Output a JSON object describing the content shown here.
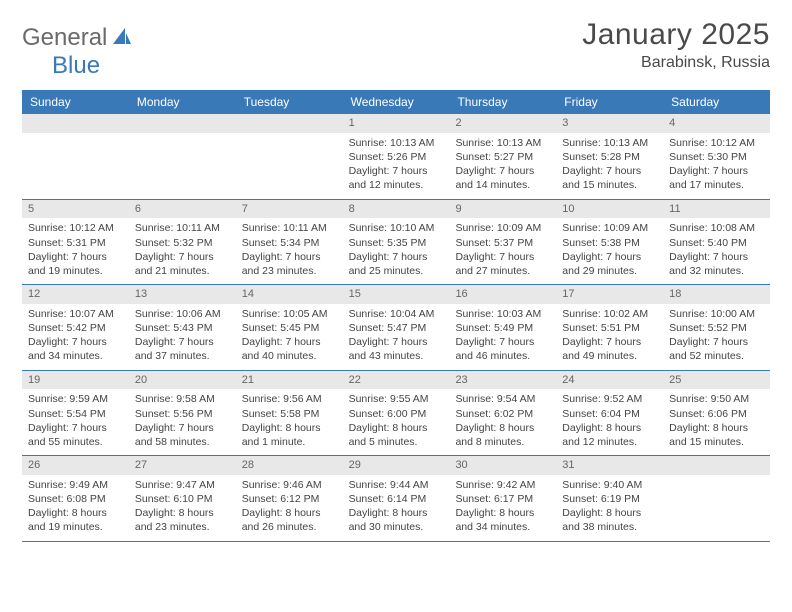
{
  "brand": {
    "part1": "General",
    "part2": "Blue",
    "sail_color": "#3a79b7",
    "text_gray": "#6a6a6a"
  },
  "title": "January 2025",
  "location": "Barabinsk, Russia",
  "colors": {
    "header_bg": "#3a79b7",
    "header_text": "#ffffff",
    "daynum_bg": "#e8e8e8",
    "daynum_text": "#666666",
    "body_text": "#444444",
    "rule": "#3a79b7"
  },
  "day_headers": [
    "Sunday",
    "Monday",
    "Tuesday",
    "Wednesday",
    "Thursday",
    "Friday",
    "Saturday"
  ],
  "weeks": [
    [
      {
        "n": "",
        "lines": []
      },
      {
        "n": "",
        "lines": []
      },
      {
        "n": "",
        "lines": []
      },
      {
        "n": "1",
        "lines": [
          "Sunrise: 10:13 AM",
          "Sunset: 5:26 PM",
          "Daylight: 7 hours",
          "and 12 minutes."
        ]
      },
      {
        "n": "2",
        "lines": [
          "Sunrise: 10:13 AM",
          "Sunset: 5:27 PM",
          "Daylight: 7 hours",
          "and 14 minutes."
        ]
      },
      {
        "n": "3",
        "lines": [
          "Sunrise: 10:13 AM",
          "Sunset: 5:28 PM",
          "Daylight: 7 hours",
          "and 15 minutes."
        ]
      },
      {
        "n": "4",
        "lines": [
          "Sunrise: 10:12 AM",
          "Sunset: 5:30 PM",
          "Daylight: 7 hours",
          "and 17 minutes."
        ]
      }
    ],
    [
      {
        "n": "5",
        "lines": [
          "Sunrise: 10:12 AM",
          "Sunset: 5:31 PM",
          "Daylight: 7 hours",
          "and 19 minutes."
        ]
      },
      {
        "n": "6",
        "lines": [
          "Sunrise: 10:11 AM",
          "Sunset: 5:32 PM",
          "Daylight: 7 hours",
          "and 21 minutes."
        ]
      },
      {
        "n": "7",
        "lines": [
          "Sunrise: 10:11 AM",
          "Sunset: 5:34 PM",
          "Daylight: 7 hours",
          "and 23 minutes."
        ]
      },
      {
        "n": "8",
        "lines": [
          "Sunrise: 10:10 AM",
          "Sunset: 5:35 PM",
          "Daylight: 7 hours",
          "and 25 minutes."
        ]
      },
      {
        "n": "9",
        "lines": [
          "Sunrise: 10:09 AM",
          "Sunset: 5:37 PM",
          "Daylight: 7 hours",
          "and 27 minutes."
        ]
      },
      {
        "n": "10",
        "lines": [
          "Sunrise: 10:09 AM",
          "Sunset: 5:38 PM",
          "Daylight: 7 hours",
          "and 29 minutes."
        ]
      },
      {
        "n": "11",
        "lines": [
          "Sunrise: 10:08 AM",
          "Sunset: 5:40 PM",
          "Daylight: 7 hours",
          "and 32 minutes."
        ]
      }
    ],
    [
      {
        "n": "12",
        "lines": [
          "Sunrise: 10:07 AM",
          "Sunset: 5:42 PM",
          "Daylight: 7 hours",
          "and 34 minutes."
        ]
      },
      {
        "n": "13",
        "lines": [
          "Sunrise: 10:06 AM",
          "Sunset: 5:43 PM",
          "Daylight: 7 hours",
          "and 37 minutes."
        ]
      },
      {
        "n": "14",
        "lines": [
          "Sunrise: 10:05 AM",
          "Sunset: 5:45 PM",
          "Daylight: 7 hours",
          "and 40 minutes."
        ]
      },
      {
        "n": "15",
        "lines": [
          "Sunrise: 10:04 AM",
          "Sunset: 5:47 PM",
          "Daylight: 7 hours",
          "and 43 minutes."
        ]
      },
      {
        "n": "16",
        "lines": [
          "Sunrise: 10:03 AM",
          "Sunset: 5:49 PM",
          "Daylight: 7 hours",
          "and 46 minutes."
        ]
      },
      {
        "n": "17",
        "lines": [
          "Sunrise: 10:02 AM",
          "Sunset: 5:51 PM",
          "Daylight: 7 hours",
          "and 49 minutes."
        ]
      },
      {
        "n": "18",
        "lines": [
          "Sunrise: 10:00 AM",
          "Sunset: 5:52 PM",
          "Daylight: 7 hours",
          "and 52 minutes."
        ]
      }
    ],
    [
      {
        "n": "19",
        "lines": [
          "Sunrise: 9:59 AM",
          "Sunset: 5:54 PM",
          "Daylight: 7 hours",
          "and 55 minutes."
        ]
      },
      {
        "n": "20",
        "lines": [
          "Sunrise: 9:58 AM",
          "Sunset: 5:56 PM",
          "Daylight: 7 hours",
          "and 58 minutes."
        ]
      },
      {
        "n": "21",
        "lines": [
          "Sunrise: 9:56 AM",
          "Sunset: 5:58 PM",
          "Daylight: 8 hours",
          "and 1 minute."
        ]
      },
      {
        "n": "22",
        "lines": [
          "Sunrise: 9:55 AM",
          "Sunset: 6:00 PM",
          "Daylight: 8 hours",
          "and 5 minutes."
        ]
      },
      {
        "n": "23",
        "lines": [
          "Sunrise: 9:54 AM",
          "Sunset: 6:02 PM",
          "Daylight: 8 hours",
          "and 8 minutes."
        ]
      },
      {
        "n": "24",
        "lines": [
          "Sunrise: 9:52 AM",
          "Sunset: 6:04 PM",
          "Daylight: 8 hours",
          "and 12 minutes."
        ]
      },
      {
        "n": "25",
        "lines": [
          "Sunrise: 9:50 AM",
          "Sunset: 6:06 PM",
          "Daylight: 8 hours",
          "and 15 minutes."
        ]
      }
    ],
    [
      {
        "n": "26",
        "lines": [
          "Sunrise: 9:49 AM",
          "Sunset: 6:08 PM",
          "Daylight: 8 hours",
          "and 19 minutes."
        ]
      },
      {
        "n": "27",
        "lines": [
          "Sunrise: 9:47 AM",
          "Sunset: 6:10 PM",
          "Daylight: 8 hours",
          "and 23 minutes."
        ]
      },
      {
        "n": "28",
        "lines": [
          "Sunrise: 9:46 AM",
          "Sunset: 6:12 PM",
          "Daylight: 8 hours",
          "and 26 minutes."
        ]
      },
      {
        "n": "29",
        "lines": [
          "Sunrise: 9:44 AM",
          "Sunset: 6:14 PM",
          "Daylight: 8 hours",
          "and 30 minutes."
        ]
      },
      {
        "n": "30",
        "lines": [
          "Sunrise: 9:42 AM",
          "Sunset: 6:17 PM",
          "Daylight: 8 hours",
          "and 34 minutes."
        ]
      },
      {
        "n": "31",
        "lines": [
          "Sunrise: 9:40 AM",
          "Sunset: 6:19 PM",
          "Daylight: 8 hours",
          "and 38 minutes."
        ]
      },
      {
        "n": "",
        "lines": []
      }
    ]
  ]
}
